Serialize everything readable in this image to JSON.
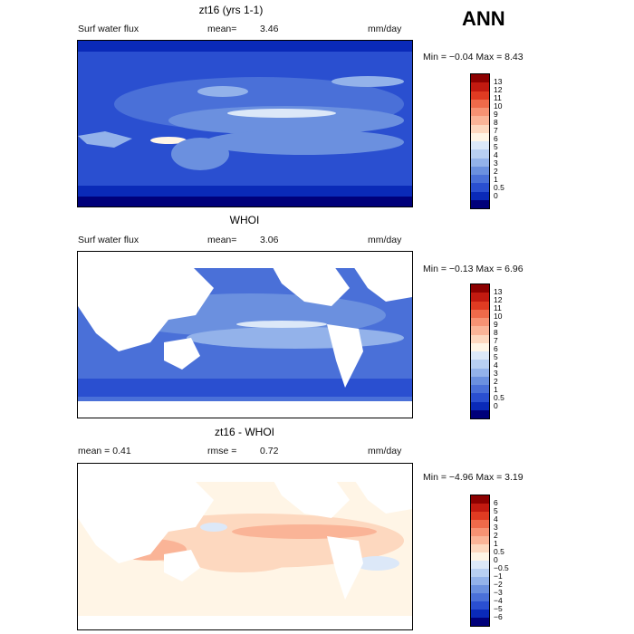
{
  "season": "ANN",
  "units": "mm/day",
  "panels": [
    {
      "title": "zt16 (yrs 1-1)",
      "left_label": "Surf water flux",
      "mid_label": "mean=",
      "mid_value": "3.46",
      "right_label": "mm/day",
      "stats": "Min =  −0.04  Max =    8.43",
      "levels": [
        "13",
        "12",
        "11",
        "10",
        "9",
        "8",
        "7",
        "6",
        "5",
        "4",
        "3",
        "2",
        "1",
        "0.5",
        "0"
      ],
      "colors": [
        "#8c0000",
        "#c21a10",
        "#e03b22",
        "#ef6a4a",
        "#f69273",
        "#fab497",
        "#fdd8bf",
        "#fff5e6",
        "#dce8f8",
        "#b8cff2",
        "#93b2ea",
        "#6b90df",
        "#4a70d8",
        "#2a4fd0",
        "#0a2ab8",
        "#00007a"
      ],
      "chart_data": {
        "type": "heatmap",
        "title": "zt16 (yrs 1-1)",
        "units": "mm/day",
        "mean": 3.46,
        "min": -0.04,
        "max": 8.43
      }
    },
    {
      "title": "WHOI",
      "left_label": "Surf water flux",
      "mid_label": "mean=",
      "mid_value": "3.06",
      "right_label": "mm/day",
      "stats": "Min =  −0.13  Max =    6.96",
      "levels": [
        "13",
        "12",
        "11",
        "10",
        "9",
        "8",
        "7",
        "6",
        "5",
        "4",
        "3",
        "2",
        "1",
        "0.5",
        "0"
      ],
      "colors": [
        "#8c0000",
        "#c21a10",
        "#e03b22",
        "#ef6a4a",
        "#f69273",
        "#fab497",
        "#fdd8bf",
        "#fff5e6",
        "#dce8f8",
        "#b8cff2",
        "#93b2ea",
        "#6b90df",
        "#4a70d8",
        "#2a4fd0",
        "#0a2ab8",
        "#00007a"
      ],
      "chart_data": {
        "type": "heatmap",
        "title": "WHOI",
        "units": "mm/day",
        "mean": 3.06,
        "min": -0.13,
        "max": 6.96
      }
    },
    {
      "title": "zt16 - WHOI",
      "left_label": "mean =    0.41",
      "mid_label": "rmse =",
      "mid_value": "0.72",
      "right_label": "mm/day",
      "stats": "Min =  −4.96  Max =    3.19",
      "levels": [
        "6",
        "5",
        "4",
        "3",
        "2",
        "1",
        "0.5",
        "0",
        "−0.5",
        "−1",
        "−2",
        "−3",
        "−4",
        "−5",
        "−6"
      ],
      "colors": [
        "#8c0000",
        "#c21a10",
        "#e03b22",
        "#ef6a4a",
        "#f69273",
        "#fab497",
        "#fdd8bf",
        "#fff5e6",
        "#dce8f8",
        "#b8cff2",
        "#93b2ea",
        "#6b90df",
        "#4a70d8",
        "#2a4fd0",
        "#0a2ab8",
        "#00007a"
      ],
      "chart_data": {
        "type": "heatmap",
        "title": "zt16 - WHOI",
        "units": "mm/day",
        "mean": 0.41,
        "rmse": 0.72,
        "min": -4.96,
        "max": 3.19
      }
    }
  ]
}
